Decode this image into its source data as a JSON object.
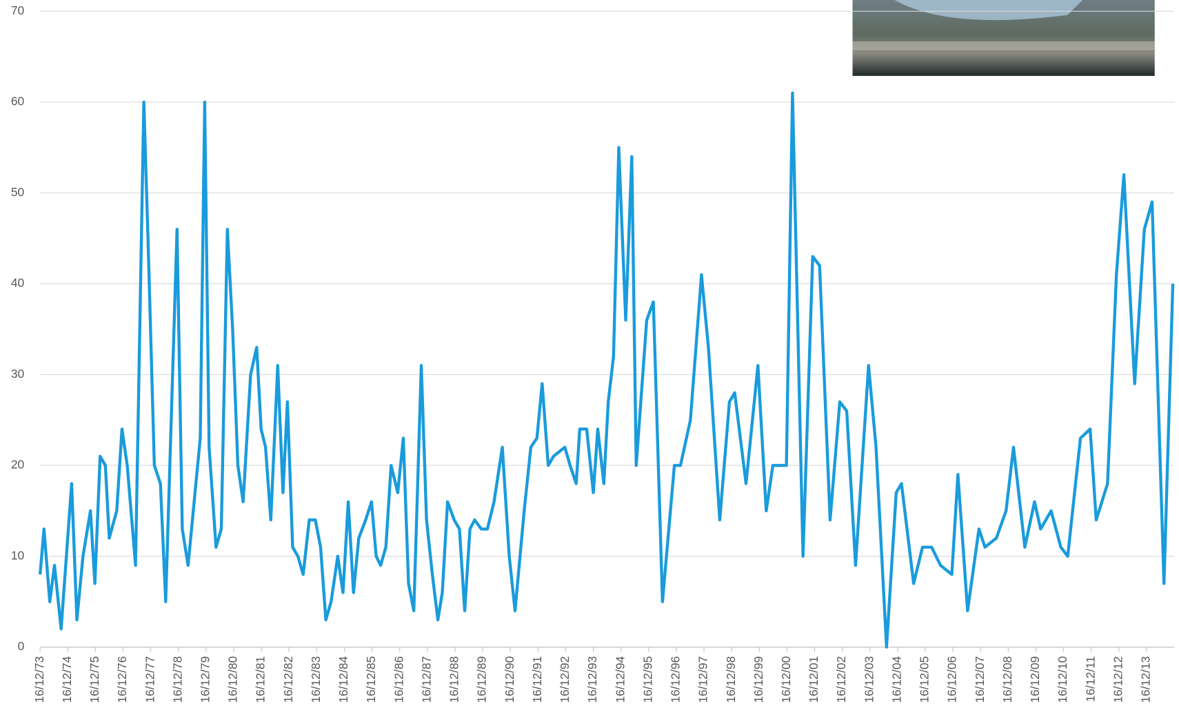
{
  "chart_data": {
    "type": "line",
    "x": [
      1973.96,
      1974.1,
      1974.31,
      1974.48,
      1974.72,
      1975.1,
      1975.29,
      1975.51,
      1975.78,
      1975.94,
      1976.13,
      1976.32,
      1976.46,
      1976.73,
      1976.92,
      1977.11,
      1977.41,
      1977.71,
      1977.87,
      1978.09,
      1978.31,
      1978.5,
      1978.91,
      1979.1,
      1979.31,
      1979.56,
      1979.75,
      1979.91,
      1980.07,
      1980.32,
      1980.51,
      1980.73,
      1980.92,
      1981.11,
      1981.3,
      1981.57,
      1981.79,
      1981.95,
      1982.11,
      1982.3,
      1982.55,
      1982.74,
      1982.9,
      1983.09,
      1983.28,
      1983.47,
      1983.69,
      1983.91,
      1984.1,
      1984.29,
      1984.48,
      1984.72,
      1984.91,
      1985.1,
      1985.29,
      1985.48,
      1985.73,
      1985.94,
      1986.11,
      1986.27,
      1986.46,
      1986.65,
      1986.89,
      1987.09,
      1987.28,
      1987.47,
      1987.74,
      1987.93,
      1988.14,
      1988.34,
      1988.5,
      1988.69,
      1988.93,
      1989.12,
      1989.31,
      1989.5,
      1989.67,
      1989.91,
      1990.13,
      1990.37,
      1990.67,
      1990.92,
      1991.13,
      1991.46,
      1991.7,
      1991.92,
      1992.11,
      1992.33,
      1992.52,
      1992.93,
      1993.12,
      1993.34,
      1993.47,
      1993.72,
      1993.96,
      1994.12,
      1994.34,
      1994.5,
      1994.69,
      1994.88,
      1995.13,
      1995.35,
      1995.51,
      1995.89,
      1996.13,
      1996.46,
      1996.89,
      1997.11,
      1997.47,
      1997.87,
      1998.12,
      1998.53,
      1998.88,
      1999.07,
      1999.48,
      1999.91,
      2000.21,
      2000.45,
      2000.67,
      2000.94,
      2001.16,
      2001.54,
      2001.89,
      2002.14,
      2002.52,
      2002.87,
      2003.12,
      2003.44,
      2003.91,
      2004.18,
      2004.56,
      2004.91,
      2005.1,
      2005.54,
      2005.86,
      2006.19,
      2006.51,
      2006.92,
      2007.14,
      2007.49,
      2007.9,
      2008.12,
      2008.53,
      2008.88,
      2009.15,
      2009.56,
      2009.91,
      2010.13,
      2010.51,
      2010.86,
      2011.11,
      2011.57,
      2011.92,
      2012.14,
      2012.55,
      2012.87,
      2013.14,
      2013.53,
      2013.88,
      2014.16,
      2014.59,
      2014.91
    ],
    "values": [
      8,
      13,
      5,
      9,
      2,
      18,
      3,
      10,
      15,
      7,
      21,
      20,
      12,
      15,
      24,
      20,
      9,
      60,
      44,
      20,
      18,
      5,
      46,
      13,
      9,
      17,
      23,
      60,
      22,
      11,
      13,
      46,
      35,
      20,
      16,
      30,
      33,
      24,
      22,
      14,
      31,
      17,
      27,
      11,
      10,
      8,
      14,
      14,
      11,
      3,
      5,
      10,
      6,
      16,
      6,
      12,
      14,
      16,
      10,
      9,
      11,
      20,
      17,
      23,
      7,
      4,
      31,
      14,
      8,
      3,
      6,
      16,
      14,
      13,
      4,
      13,
      14,
      13,
      13,
      16,
      22,
      10,
      4,
      15,
      22,
      23,
      29,
      20,
      21,
      22,
      20,
      18,
      24,
      24,
      17,
      24,
      18,
      27,
      32,
      55,
      36,
      54,
      20,
      36,
      38,
      5,
      20,
      20,
      25,
      41,
      33,
      14,
      27,
      28,
      18,
      31,
      15,
      20,
      20,
      20,
      61,
      10,
      43,
      42,
      14,
      27,
      26,
      9,
      31,
      22,
      0,
      17,
      18,
      7,
      11,
      11,
      9,
      8,
      19,
      4,
      13,
      11,
      12,
      15,
      22,
      11,
      16,
      13,
      15,
      11,
      10,
      23,
      24,
      14,
      18,
      41,
      52,
      29,
      46,
      49,
      7,
      40
    ],
    "color": "#1a9bdb",
    "xlim": [
      1973.96,
      2014.96
    ],
    "xticks": [
      {
        "value": 1973.96,
        "label": "16/12/73"
      },
      {
        "value": 1974.96,
        "label": "16/12/74"
      },
      {
        "value": 1975.96,
        "label": "16/12/75"
      },
      {
        "value": 1976.96,
        "label": "16/12/76"
      },
      {
        "value": 1977.96,
        "label": "16/12/77"
      },
      {
        "value": 1978.96,
        "label": "16/12/78"
      },
      {
        "value": 1979.96,
        "label": "16/12/79"
      },
      {
        "value": 1980.96,
        "label": "16/12/80"
      },
      {
        "value": 1981.96,
        "label": "16/12/81"
      },
      {
        "value": 1982.96,
        "label": "16/12/82"
      },
      {
        "value": 1983.96,
        "label": "16/12/83"
      },
      {
        "value": 1984.96,
        "label": "16/12/84"
      },
      {
        "value": 1985.96,
        "label": "16/12/85"
      },
      {
        "value": 1986.96,
        "label": "16/12/86"
      },
      {
        "value": 1987.96,
        "label": "16/12/87"
      },
      {
        "value": 1988.96,
        "label": "16/12/88"
      },
      {
        "value": 1989.96,
        "label": "16/12/89"
      },
      {
        "value": 1990.96,
        "label": "16/12/90"
      },
      {
        "value": 1991.96,
        "label": "16/12/91"
      },
      {
        "value": 1992.96,
        "label": "16/12/92"
      },
      {
        "value": 1993.96,
        "label": "16/12/93"
      },
      {
        "value": 1994.96,
        "label": "16/12/94"
      },
      {
        "value": 1995.96,
        "label": "16/12/95"
      },
      {
        "value": 1996.96,
        "label": "16/12/96"
      },
      {
        "value": 1997.96,
        "label": "16/12/97"
      },
      {
        "value": 1998.96,
        "label": "16/12/98"
      },
      {
        "value": 1999.96,
        "label": "16/12/99"
      },
      {
        "value": 2000.96,
        "label": "16/12/00"
      },
      {
        "value": 2001.96,
        "label": "16/12/01"
      },
      {
        "value": 2002.96,
        "label": "16/12/02"
      },
      {
        "value": 2003.96,
        "label": "16/12/03"
      },
      {
        "value": 2004.96,
        "label": "16/12/04"
      },
      {
        "value": 2005.96,
        "label": "16/12/05"
      },
      {
        "value": 2006.96,
        "label": "16/12/06"
      },
      {
        "value": 2007.96,
        "label": "16/12/07"
      },
      {
        "value": 2008.96,
        "label": "16/12/08"
      },
      {
        "value": 2009.96,
        "label": "16/12/09"
      },
      {
        "value": 2010.96,
        "label": "16/12/10"
      },
      {
        "value": 2011.96,
        "label": "16/12/11"
      },
      {
        "value": 2012.96,
        "label": "16/12/12"
      },
      {
        "value": 2013.96,
        "label": "16/12/13"
      }
    ],
    "ylim": [
      0,
      70
    ],
    "yticks": [
      0,
      10,
      20,
      30,
      40,
      50,
      60,
      70
    ],
    "grid": true
  }
}
